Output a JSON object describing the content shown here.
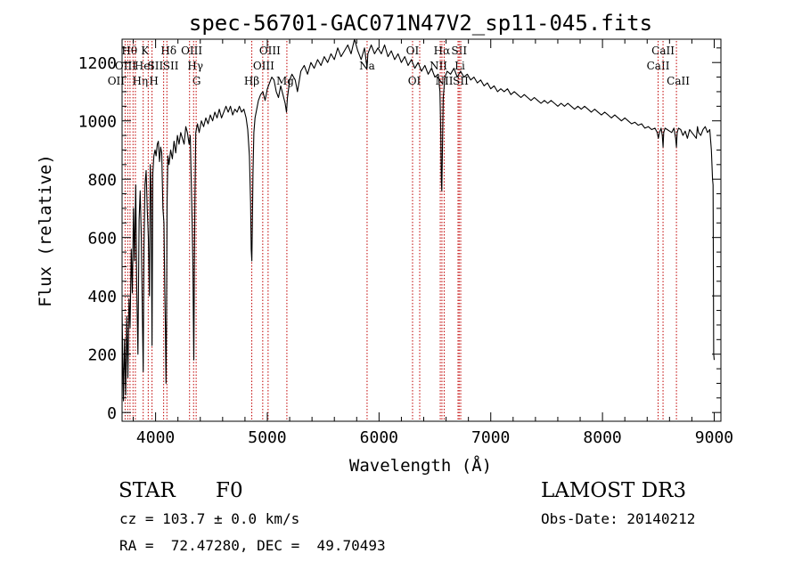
{
  "chart_data": {
    "type": "line",
    "title": "spec-56701-GAC071N47V2_sp11-045.fits",
    "xlabel": "Wavelength (Å)",
    "ylabel": "Flux (relative)",
    "xlim": [
      3700,
      9060
    ],
    "ylim": [
      -30,
      1280
    ],
    "x_ticks": [
      4000,
      5000,
      6000,
      7000,
      8000,
      9000
    ],
    "x_tick_labels": [
      "4000",
      "5000",
      "6000",
      "7000",
      "8000",
      "9000"
    ],
    "y_ticks": [
      0,
      200,
      400,
      600,
      800,
      1000,
      1200
    ],
    "y_tick_labels": [
      "0",
      "200",
      "400",
      "600",
      "800",
      "1000",
      "1200"
    ],
    "x_minor_step": 200,
    "y_minor_step": 50,
    "grid": false,
    "series": [
      {
        "name": "spectrum",
        "color": "#000000",
        "points": [
          [
            3700,
            350
          ],
          [
            3712,
            40
          ],
          [
            3722,
            250
          ],
          [
            3732,
            60
          ],
          [
            3742,
            330
          ],
          [
            3752,
            120
          ],
          [
            3762,
            390
          ],
          [
            3772,
            290
          ],
          [
            3782,
            560
          ],
          [
            3792,
            410
          ],
          [
            3802,
            700
          ],
          [
            3812,
            520
          ],
          [
            3822,
            780
          ],
          [
            3832,
            420
          ],
          [
            3842,
            200
          ],
          [
            3852,
            660
          ],
          [
            3862,
            760
          ],
          [
            3872,
            600
          ],
          [
            3882,
            330
          ],
          [
            3889,
            140
          ],
          [
            3896,
            560
          ],
          [
            3905,
            780
          ],
          [
            3915,
            830
          ],
          [
            3925,
            700
          ],
          [
            3935,
            600
          ],
          [
            3945,
            400
          ],
          [
            3952,
            850
          ],
          [
            3960,
            760
          ],
          [
            3968,
            230
          ],
          [
            3975,
            820
          ],
          [
            3985,
            880
          ],
          [
            3995,
            900
          ],
          [
            4005,
            880
          ],
          [
            4015,
            920
          ],
          [
            4025,
            930
          ],
          [
            4035,
            860
          ],
          [
            4045,
            910
          ],
          [
            4055,
            890
          ],
          [
            4065,
            700
          ],
          [
            4075,
            650
          ],
          [
            4082,
            420
          ],
          [
            4088,
            300
          ],
          [
            4093,
            100
          ],
          [
            4098,
            320
          ],
          [
            4103,
            720
          ],
          [
            4110,
            880
          ],
          [
            4120,
            850
          ],
          [
            4135,
            900
          ],
          [
            4150,
            870
          ],
          [
            4165,
            930
          ],
          [
            4180,
            890
          ],
          [
            4195,
            950
          ],
          [
            4210,
            920
          ],
          [
            4225,
            960
          ],
          [
            4240,
            940
          ],
          [
            4255,
            920
          ],
          [
            4270,
            980
          ],
          [
            4285,
            960
          ],
          [
            4300,
            920
          ],
          [
            4310,
            950
          ],
          [
            4320,
            780
          ],
          [
            4328,
            640
          ],
          [
            4334,
            500
          ],
          [
            4338,
            320
          ],
          [
            4342,
            180
          ],
          [
            4346,
            420
          ],
          [
            4352,
            720
          ],
          [
            4360,
            960
          ],
          [
            4375,
            990
          ],
          [
            4390,
            960
          ],
          [
            4410,
            1000
          ],
          [
            4430,
            980
          ],
          [
            4450,
            1010
          ],
          [
            4470,
            990
          ],
          [
            4490,
            1020
          ],
          [
            4510,
            1000
          ],
          [
            4530,
            1030
          ],
          [
            4550,
            1010
          ],
          [
            4570,
            1040
          ],
          [
            4590,
            1010
          ],
          [
            4610,
            1030
          ],
          [
            4630,
            1050
          ],
          [
            4650,
            1030
          ],
          [
            4670,
            1050
          ],
          [
            4690,
            1020
          ],
          [
            4710,
            1040
          ],
          [
            4730,
            1030
          ],
          [
            4750,
            1050
          ],
          [
            4770,
            1030
          ],
          [
            4790,
            1040
          ],
          [
            4810,
            1010
          ],
          [
            4825,
            970
          ],
          [
            4840,
            880
          ],
          [
            4850,
            720
          ],
          [
            4856,
            560
          ],
          [
            4861,
            520
          ],
          [
            4866,
            640
          ],
          [
            4872,
            820
          ],
          [
            4880,
            960
          ],
          [
            4890,
            1010
          ],
          [
            4905,
            1040
          ],
          [
            4920,
            1070
          ],
          [
            4940,
            1090
          ],
          [
            4960,
            1100
          ],
          [
            4980,
            1070
          ],
          [
            5000,
            1110
          ],
          [
            5020,
            1130
          ],
          [
            5040,
            1150
          ],
          [
            5060,
            1140
          ],
          [
            5080,
            1100
          ],
          [
            5100,
            1080
          ],
          [
            5120,
            1120
          ],
          [
            5140,
            1090
          ],
          [
            5160,
            1060
          ],
          [
            5172,
            1030
          ],
          [
            5180,
            1080
          ],
          [
            5200,
            1140
          ],
          [
            5220,
            1160
          ],
          [
            5250,
            1140
          ],
          [
            5270,
            1100
          ],
          [
            5300,
            1170
          ],
          [
            5330,
            1190
          ],
          [
            5360,
            1160
          ],
          [
            5390,
            1200
          ],
          [
            5420,
            1180
          ],
          [
            5450,
            1210
          ],
          [
            5480,
            1190
          ],
          [
            5510,
            1220
          ],
          [
            5540,
            1200
          ],
          [
            5570,
            1230
          ],
          [
            5600,
            1210
          ],
          [
            5630,
            1250
          ],
          [
            5660,
            1220
          ],
          [
            5690,
            1240
          ],
          [
            5720,
            1260
          ],
          [
            5750,
            1230
          ],
          [
            5780,
            1280
          ],
          [
            5810,
            1240
          ],
          [
            5840,
            1210
          ],
          [
            5870,
            1250
          ],
          [
            5893,
            1180
          ],
          [
            5900,
            1230
          ],
          [
            5930,
            1260
          ],
          [
            5960,
            1230
          ],
          [
            5990,
            1250
          ],
          [
            6020,
            1230
          ],
          [
            6050,
            1260
          ],
          [
            6080,
            1220
          ],
          [
            6110,
            1240
          ],
          [
            6140,
            1210
          ],
          [
            6170,
            1230
          ],
          [
            6200,
            1200
          ],
          [
            6230,
            1220
          ],
          [
            6260,
            1190
          ],
          [
            6290,
            1210
          ],
          [
            6320,
            1180
          ],
          [
            6350,
            1200
          ],
          [
            6380,
            1170
          ],
          [
            6410,
            1190
          ],
          [
            6440,
            1160
          ],
          [
            6470,
            1180
          ],
          [
            6500,
            1150
          ],
          [
            6530,
            1160
          ],
          [
            6545,
            1100
          ],
          [
            6553,
            950
          ],
          [
            6558,
            790
          ],
          [
            6562,
            760
          ],
          [
            6567,
            880
          ],
          [
            6575,
            1080
          ],
          [
            6590,
            1150
          ],
          [
            6610,
            1170
          ],
          [
            6640,
            1160
          ],
          [
            6670,
            1180
          ],
          [
            6700,
            1150
          ],
          [
            6730,
            1170
          ],
          [
            6760,
            1150
          ],
          [
            6790,
            1160
          ],
          [
            6820,
            1140
          ],
          [
            6850,
            1150
          ],
          [
            6880,
            1130
          ],
          [
            6910,
            1140
          ],
          [
            6940,
            1120
          ],
          [
            6970,
            1130
          ],
          [
            7000,
            1110
          ],
          [
            7030,
            1120
          ],
          [
            7060,
            1100
          ],
          [
            7090,
            1110
          ],
          [
            7120,
            1100
          ],
          [
            7150,
            1110
          ],
          [
            7180,
            1090
          ],
          [
            7210,
            1100
          ],
          [
            7240,
            1090
          ],
          [
            7270,
            1080
          ],
          [
            7300,
            1090
          ],
          [
            7330,
            1080
          ],
          [
            7360,
            1070
          ],
          [
            7390,
            1080
          ],
          [
            7420,
            1070
          ],
          [
            7450,
            1060
          ],
          [
            7480,
            1070
          ],
          [
            7510,
            1060
          ],
          [
            7540,
            1070
          ],
          [
            7570,
            1060
          ],
          [
            7600,
            1050
          ],
          [
            7630,
            1060
          ],
          [
            7660,
            1050
          ],
          [
            7690,
            1060
          ],
          [
            7720,
            1050
          ],
          [
            7750,
            1040
          ],
          [
            7780,
            1050
          ],
          [
            7810,
            1040
          ],
          [
            7840,
            1050
          ],
          [
            7870,
            1040
          ],
          [
            7900,
            1030
          ],
          [
            7930,
            1040
          ],
          [
            7960,
            1030
          ],
          [
            7990,
            1020
          ],
          [
            8020,
            1030
          ],
          [
            8050,
            1020
          ],
          [
            8080,
            1010
          ],
          [
            8110,
            1020
          ],
          [
            8140,
            1010
          ],
          [
            8170,
            1000
          ],
          [
            8200,
            1010
          ],
          [
            8230,
            1000
          ],
          [
            8260,
            990
          ],
          [
            8290,
            995
          ],
          [
            8320,
            985
          ],
          [
            8350,
            990
          ],
          [
            8380,
            975
          ],
          [
            8410,
            980
          ],
          [
            8440,
            970
          ],
          [
            8470,
            975
          ],
          [
            8490,
            960
          ],
          [
            8500,
            940
          ],
          [
            8510,
            960
          ],
          [
            8525,
            975
          ],
          [
            8535,
            950
          ],
          [
            8542,
            910
          ],
          [
            8548,
            960
          ],
          [
            8560,
            975
          ],
          [
            8580,
            970
          ],
          [
            8600,
            965
          ],
          [
            8620,
            960
          ],
          [
            8640,
            975
          ],
          [
            8655,
            940
          ],
          [
            8662,
            910
          ],
          [
            8668,
            960
          ],
          [
            8680,
            975
          ],
          [
            8700,
            970
          ],
          [
            8720,
            950
          ],
          [
            8740,
            965
          ],
          [
            8760,
            940
          ],
          [
            8780,
            970
          ],
          [
            8800,
            960
          ],
          [
            8820,
            950
          ],
          [
            8840,
            940
          ],
          [
            8850,
            980
          ],
          [
            8860,
            960
          ],
          [
            8880,
            950
          ],
          [
            8900,
            970
          ],
          [
            8920,
            980
          ],
          [
            8940,
            960
          ],
          [
            8960,
            970
          ],
          [
            8975,
            900
          ],
          [
            8985,
            800
          ],
          [
            8990,
            780
          ],
          [
            8995,
            200
          ],
          [
            9000,
            180
          ]
        ]
      }
    ],
    "line_markers": [
      {
        "x": 3727,
        "label": "OII",
        "row": 2,
        "dx": -10
      },
      {
        "x": 3750,
        "label": "Hθ",
        "row": 0,
        "dx": 2
      },
      {
        "x": 3771,
        "label": "OIII",
        "row": 1,
        "dx": -5
      },
      {
        "x": 3798,
        "label": "Hη",
        "row": 2,
        "dx": 8
      },
      {
        "x": 3819,
        "label": "HeI",
        "row": 1,
        "dx": 10
      },
      {
        "x": 3889,
        "label": "K",
        "row": 0,
        "dx": 2
      },
      {
        "x": 3934,
        "label": "SII",
        "row": 1,
        "dx": 8
      },
      {
        "x": 3968,
        "label": "H",
        "row": 2,
        "dx": 2
      },
      {
        "x": 4101,
        "label": "Hδ",
        "row": 0,
        "dx": 2
      },
      {
        "x": 4072,
        "label": "SII",
        "row": 1,
        "dx": 8
      },
      {
        "x": 4304,
        "label": "G",
        "row": 2,
        "dx": 8
      },
      {
        "x": 4340,
        "label": "Hγ",
        "row": 1,
        "dx": 2
      },
      {
        "x": 4363,
        "label": "OIII",
        "row": 0,
        "dx": -5
      },
      {
        "x": 4861,
        "label": "Hβ",
        "row": 2,
        "dx": 0
      },
      {
        "x": 4959,
        "label": "OIII",
        "row": 0,
        "dx": 8
      },
      {
        "x": 5007,
        "label": "OIII",
        "row": 1,
        "dx": -5
      },
      {
        "x": 5175,
        "label": "Mg",
        "row": 2,
        "dx": -2
      },
      {
        "x": 5893,
        "label": "Na",
        "row": 1,
        "dx": 0
      },
      {
        "x": 6300,
        "label": "OI",
        "row": 0,
        "dx": 0
      },
      {
        "x": 6364,
        "label": "OI",
        "row": 2,
        "dx": -6
      },
      {
        "x": 6548,
        "label": "NII",
        "row": 1,
        "dx": -2
      },
      {
        "x": 6563,
        "label": "Hα",
        "row": 0,
        "dx": 0
      },
      {
        "x": 6583,
        "label": "NII",
        "row": 2,
        "dx": 0
      },
      {
        "x": 6707,
        "label": "Li",
        "row": 1,
        "dx": 2
      },
      {
        "x": 6717,
        "label": "SII",
        "row": 0,
        "dx": 0
      },
      {
        "x": 6731,
        "label": "SII",
        "row": 2,
        "dx": 0
      },
      {
        "x": 8498,
        "label": "CaII",
        "row": 1,
        "dx": 0
      },
      {
        "x": 8542,
        "label": "CaII",
        "row": 0,
        "dx": 0
      },
      {
        "x": 8662,
        "label": "CaII",
        "row": 2,
        "dx": 2
      }
    ]
  },
  "info": {
    "object_class": "STAR",
    "subclass": "F0",
    "survey": "LAMOST DR3",
    "redshift": "cz = 103.7 ± 0.0 km/s",
    "obs_date": "Obs-Date: 20140212",
    "coords": "RA =  72.47280, DEC =  49.70493"
  }
}
